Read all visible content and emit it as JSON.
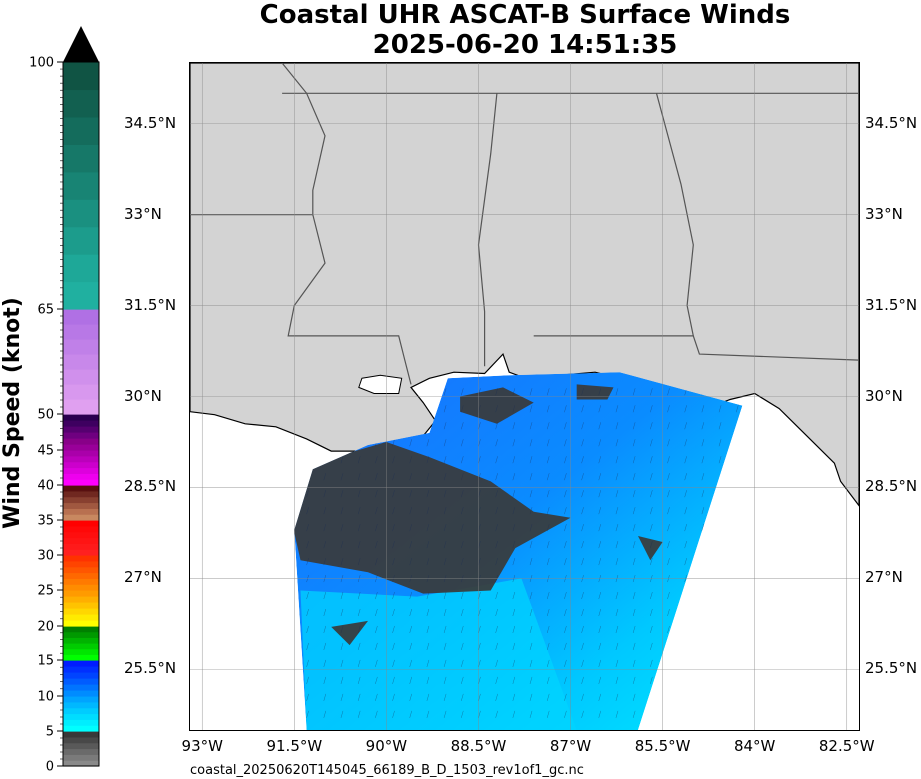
{
  "title": {
    "line1": "Coastal UHR ASCAT-B Surface Winds",
    "line2": "2025-06-20 14:51:35"
  },
  "colorbar": {
    "label": "Wind Speed (knot)",
    "min": 0,
    "max": 100,
    "tick_values": [
      0,
      5,
      10,
      15,
      20,
      25,
      30,
      35,
      40,
      45,
      50,
      65,
      100
    ],
    "tick_labels": [
      "0",
      "5",
      "10",
      "15",
      "20",
      "25",
      "30",
      "35",
      "40",
      "45",
      "50",
      "65",
      "100"
    ],
    "extend": "max",
    "segments": [
      {
        "from": 0,
        "to": 5,
        "colors": [
          "#8a8a8a",
          "#7a7a7a",
          "#6a6a6a",
          "#595959",
          "#484848",
          "#383838"
        ]
      },
      {
        "from": 5,
        "to": 10,
        "colors": [
          "#00ffff",
          "#00eeff",
          "#00ddff",
          "#00ccff",
          "#00b8ff",
          "#00a4ff"
        ]
      },
      {
        "from": 10,
        "to": 15,
        "colors": [
          "#008cff",
          "#0074ff",
          "#005cff",
          "#0044ff",
          "#0030ff",
          "#001cff"
        ]
      },
      {
        "from": 15,
        "to": 20,
        "colors": [
          "#00ff00",
          "#00e600",
          "#00cc00",
          "#00b300",
          "#009900",
          "#008000"
        ]
      },
      {
        "from": 20,
        "to": 25,
        "colors": [
          "#ffff00",
          "#ffeb00",
          "#ffd700",
          "#ffc300",
          "#ffaf00",
          "#ff9b00"
        ]
      },
      {
        "from": 25,
        "to": 30,
        "colors": [
          "#ff8c00",
          "#ff7a00",
          "#ff6800",
          "#ff5600",
          "#ff4400",
          "#ff3200"
        ]
      },
      {
        "from": 30,
        "to": 35,
        "colors": [
          "#ff2020",
          "#ff1a1a",
          "#ff1414",
          "#ff0e0e",
          "#ff0808",
          "#ff0000"
        ]
      },
      {
        "from": 35,
        "to": 40,
        "colors": [
          "#c88860",
          "#b87050",
          "#a05840",
          "#884030",
          "#702820",
          "#581010"
        ]
      },
      {
        "from": 40,
        "to": 45,
        "colors": [
          "#ff00ff",
          "#ee00ee",
          "#dd00dd",
          "#cc00cc",
          "#bb00bb",
          "#aa00aa"
        ]
      },
      {
        "from": 45,
        "to": 50,
        "colors": [
          "#990099",
          "#880088",
          "#6f0080",
          "#560070",
          "#3e0060",
          "#2a0050"
        ]
      },
      {
        "from": 50,
        "to": 65,
        "colors": [
          "#e0a0f0",
          "#d898ee",
          "#d090ec",
          "#c888ea",
          "#c080e8",
          "#b878e6",
          "#b070e4"
        ]
      },
      {
        "from": 65,
        "to": 100,
        "colors": [
          "#20b0a0",
          "#1ea898",
          "#1c9c8c",
          "#1a9080",
          "#188474",
          "#167868",
          "#146c5c",
          "#126050",
          "#105444"
        ]
      }
    ]
  },
  "map": {
    "lon_range": [
      -93.2,
      -82.3
    ],
    "lat_range": [
      24.5,
      35.5
    ],
    "lat_ticks": [
      {
        "value": 25.5,
        "label": "25.5°N"
      },
      {
        "value": 27,
        "label": "27°N"
      },
      {
        "value": 28.5,
        "label": "28.5°N"
      },
      {
        "value": 30,
        "label": "30°N"
      },
      {
        "value": 31.5,
        "label": "31.5°N"
      },
      {
        "value": 33,
        "label": "33°N"
      },
      {
        "value": 34.5,
        "label": "34.5°N"
      }
    ],
    "lon_ticks": [
      {
        "value": -93,
        "label": "93°W"
      },
      {
        "value": -91.5,
        "label": "91.5°W"
      },
      {
        "value": -90,
        "label": "90°W"
      },
      {
        "value": -88.5,
        "label": "88.5°W"
      },
      {
        "value": -87,
        "label": "87°W"
      },
      {
        "value": -85.5,
        "label": "85.5°W"
      },
      {
        "value": -84,
        "label": "84°W"
      },
      {
        "value": -82.5,
        "label": "82.5°W"
      }
    ],
    "land_color": "#d3d3d3",
    "ocean_color": "#ffffff",
    "rain_flag_color": "#3a3a3a",
    "gridlines": true
  },
  "footer": {
    "filename": "coastal_20250620T145045_66189_B_D_1503_rev1of1_gc.nc"
  }
}
